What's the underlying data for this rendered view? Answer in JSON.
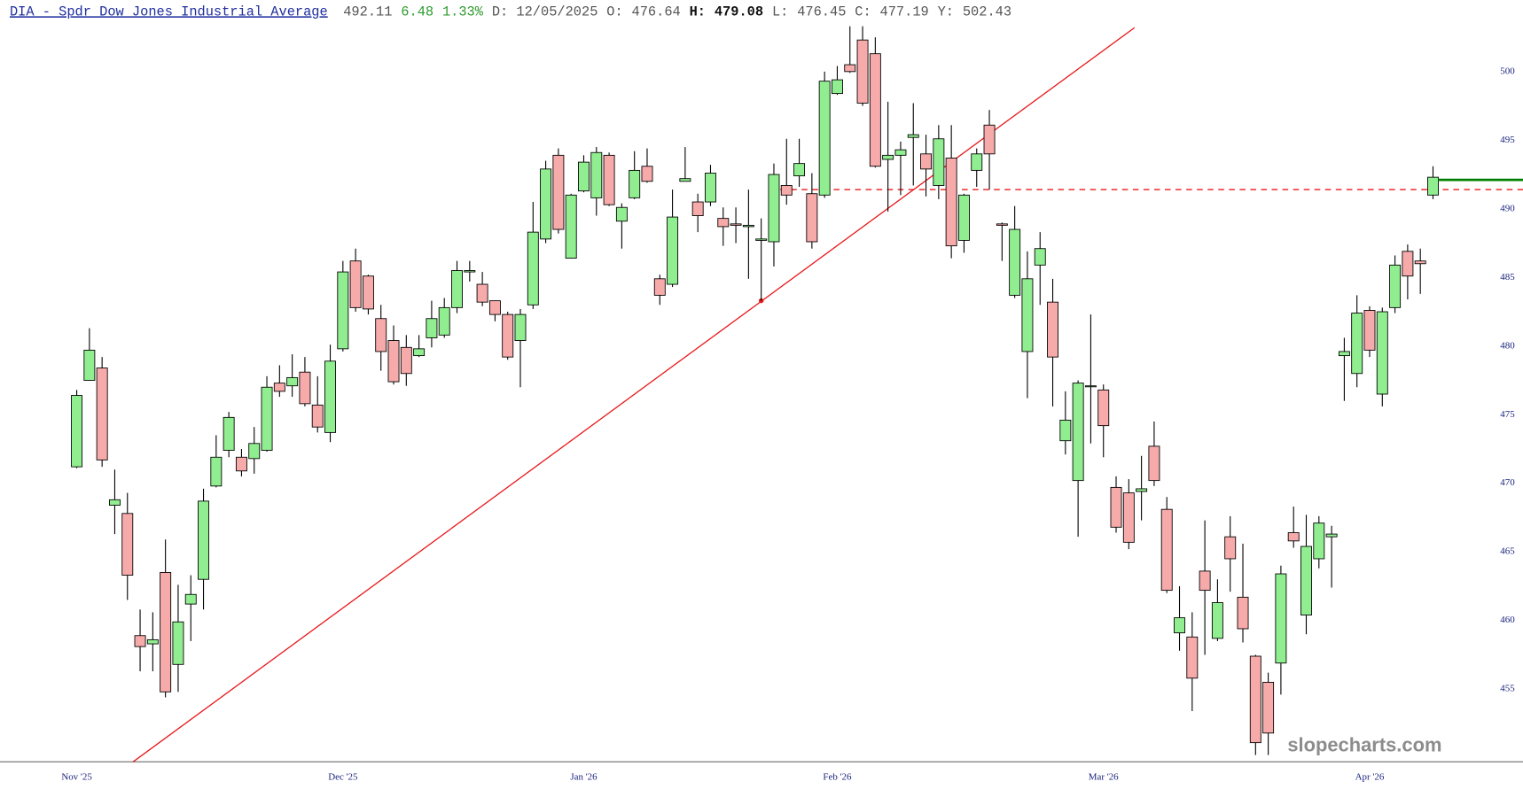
{
  "header": {
    "title": "DIA - Spdr Dow Jones Industrial Average",
    "last": 492.11,
    "change": 6.48,
    "change_pct": "1.33%",
    "date": "D: 12/05/2025",
    "open_label": "O:",
    "open": 476.64,
    "high_label": "H:",
    "high": 479.08,
    "low_label": "L:",
    "low": 476.45,
    "close_label": "C:",
    "close": 477.19,
    "y_label": "Y:",
    "y": 502.43
  },
  "chart_data": {
    "type": "candlestick",
    "categories": [
      "Nov '25",
      null,
      null,
      null,
      null,
      null,
      null,
      null,
      null,
      null,
      null,
      null,
      null,
      null,
      null,
      null,
      null,
      null,
      null,
      null,
      null,
      "Dec '25",
      null,
      null,
      null,
      null,
      null,
      null,
      null,
      null,
      null,
      null,
      null,
      null,
      null,
      null,
      null,
      null,
      null,
      null,
      "Jan '26",
      null,
      null,
      null,
      null,
      null,
      null,
      null,
      null,
      null,
      null,
      null,
      null,
      null,
      null,
      null,
      null,
      null,
      null,
      null,
      "Feb '26",
      null,
      null,
      null,
      null,
      null,
      null,
      null,
      null,
      null,
      null,
      null,
      null,
      null,
      null,
      null,
      null,
      null,
      null,
      null,
      null,
      "Mar '26",
      null,
      null,
      null,
      null,
      null,
      null,
      null,
      null,
      null,
      null,
      null,
      null,
      null,
      null,
      null,
      null,
      null,
      null,
      null,
      null,
      "Apr '26",
      null,
      null,
      null,
      null,
      null
    ],
    "open": [
      471.2,
      477.5,
      478.4,
      468.4,
      467.8,
      458.9,
      458.3,
      463.5,
      456.8,
      461.2,
      463.0,
      469.8,
      472.4,
      471.9,
      471.8,
      472.4,
      477.3,
      477.1,
      478.1,
      475.7,
      473.7,
      479.8,
      486.2,
      485.1,
      482.0,
      480.4,
      479.9,
      479.3,
      480.6,
      480.8,
      482.8,
      485.4,
      484.5,
      483.3,
      482.3,
      480.4,
      483.0,
      487.8,
      493.9,
      486.4,
      491.3,
      490.8,
      493.9,
      489.1,
      490.8,
      493.1,
      484.9,
      484.5,
      492.0,
      490.5,
      490.5,
      489.3,
      488.9,
      488.7,
      487.7,
      487.6,
      491.7,
      492.4,
      491.1,
      491.0,
      498.4,
      500.5,
      502.3,
      501.3,
      493.6,
      493.9,
      495.2,
      494.0,
      491.7,
      493.7,
      487.7,
      492.8,
      496.1,
      488.9,
      483.7,
      479.6,
      485.9,
      483.2,
      473.1,
      470.2,
      477.1,
      476.8,
      469.7,
      469.3,
      469.4,
      472.7,
      468.1,
      459.1,
      458.8,
      463.6,
      458.7,
      466.1,
      461.7,
      457.4,
      455.5,
      456.9,
      466.4,
      460.4,
      464.5,
      466.1,
      479.3,
      478.0,
      482.6,
      476.5,
      482.8,
      486.9,
      486.2,
      491.0
    ],
    "high": [
      476.8,
      481.3,
      479.2,
      471.0,
      469.3,
      460.8,
      460.6,
      465.9,
      462.6,
      463.3,
      469.6,
      473.5,
      475.2,
      472.5,
      474.1,
      477.8,
      478.6,
      479.4,
      479.2,
      477.8,
      480.1,
      486.2,
      487.1,
      485.2,
      483.0,
      481.5,
      480.8,
      480.8,
      483.3,
      483.5,
      486.2,
      486.2,
      485.4,
      483.3,
      482.5,
      482.7,
      490.5,
      493.5,
      494.4,
      491.1,
      493.9,
      494.5,
      494.1,
      490.4,
      494.2,
      494.4,
      485.2,
      491.4,
      494.5,
      491.1,
      493.2,
      490.1,
      490.1,
      491.4,
      489.3,
      493.3,
      495.1,
      495.1,
      492.6,
      500.0,
      500.4,
      503.3,
      503.3,
      502.5,
      497.8,
      494.9,
      497.7,
      495.4,
      496.1,
      496.1,
      491.1,
      494.4,
      497.2,
      489.0,
      490.2,
      486.9,
      488.3,
      484.9,
      476.7,
      477.5,
      482.3,
      477.2,
      470.5,
      470.3,
      472.0,
      474.5,
      469.0,
      462.5,
      460.6,
      467.3,
      463.0,
      467.6,
      465.6,
      457.5,
      456.2,
      464.0,
      468.3,
      467.7,
      467.6,
      466.9,
      480.6,
      483.7,
      482.9,
      482.8,
      486.6,
      487.4,
      487.1,
      493.1
    ],
    "low": [
      471.1,
      477.5,
      471.2,
      466.3,
      461.5,
      456.3,
      456.3,
      454.4,
      454.8,
      458.5,
      460.8,
      469.7,
      471.9,
      470.5,
      470.7,
      472.3,
      476.3,
      476.3,
      475.6,
      473.7,
      473.0,
      479.6,
      482.5,
      482.3,
      478.2,
      477.2,
      477.1,
      479.2,
      479.9,
      480.6,
      482.4,
      484.7,
      482.9,
      481.8,
      479.0,
      477.0,
      482.7,
      487.5,
      488.2,
      486.4,
      491.2,
      489.5,
      490.2,
      487.1,
      490.7,
      491.9,
      483.0,
      484.3,
      492.0,
      488.3,
      490.2,
      487.3,
      487.5,
      484.9,
      483.3,
      485.8,
      490.3,
      491.6,
      487.1,
      490.8,
      498.3,
      499.9,
      497.5,
      493.0,
      489.8,
      491.0,
      491.7,
      490.9,
      490.7,
      486.4,
      486.8,
      491.6,
      491.4,
      486.2,
      483.5,
      476.2,
      483.0,
      475.6,
      472.1,
      466.1,
      472.9,
      471.9,
      466.4,
      465.2,
      467.3,
      469.8,
      462.0,
      457.8,
      453.4,
      457.5,
      458.5,
      462.1,
      458.4,
      450.2,
      450.2,
      454.6,
      465.3,
      459.0,
      463.8,
      462.4,
      476.0,
      477.0,
      479.2,
      475.6,
      482.4,
      483.4,
      483.8,
      490.7
    ],
    "close": [
      476.4,
      479.7,
      471.7,
      468.8,
      463.3,
      458.1,
      458.6,
      454.8,
      459.9,
      461.9,
      468.7,
      471.9,
      474.8,
      470.9,
      472.9,
      477.0,
      476.7,
      477.7,
      475.8,
      474.1,
      478.9,
      485.4,
      482.8,
      482.7,
      479.6,
      477.4,
      478.0,
      479.8,
      482.0,
      482.8,
      485.5,
      485.5,
      483.2,
      482.3,
      479.2,
      482.3,
      488.3,
      492.9,
      488.5,
      491.0,
      493.4,
      494.1,
      490.3,
      490.1,
      492.8,
      492.0,
      483.7,
      489.4,
      492.2,
      489.5,
      492.6,
      488.7,
      488.8,
      488.8,
      487.8,
      492.5,
      491.0,
      493.3,
      487.6,
      499.3,
      499.4,
      500.0,
      497.7,
      493.1,
      493.9,
      494.3,
      495.4,
      492.9,
      495.1,
      487.3,
      491.0,
      494.0,
      494.0,
      488.8,
      488.5,
      484.9,
      487.1,
      479.2,
      474.6,
      477.3,
      477.1,
      474.2,
      466.8,
      465.7,
      469.6,
      470.2,
      462.2,
      460.2,
      455.8,
      462.2,
      461.3,
      464.5,
      459.4,
      451.1,
      451.8,
      463.4,
      465.8,
      465.4,
      467.1,
      466.3,
      479.6,
      482.4,
      479.7,
      482.5,
      485.9,
      485.1,
      486.0,
      492.3
    ],
    "up_color": "#90ee90",
    "down_color": "#f7aaaa",
    "ylim": [
      449.7,
      505.2
    ],
    "yticks": [
      455,
      460,
      465,
      470,
      475,
      480,
      485,
      490,
      495,
      500
    ],
    "trendline": {
      "x": [
        4.44,
        83.45
      ],
      "y": [
        449.7,
        503.2
      ],
      "anchor_x": 54,
      "anchor_y": 483.3,
      "color": "#e8191c"
    },
    "level_line": {
      "value": 491.4,
      "start": 55.5,
      "color": "#e8191c"
    },
    "last_line_color": "#008000",
    "watermark": "slopecharts.com"
  }
}
